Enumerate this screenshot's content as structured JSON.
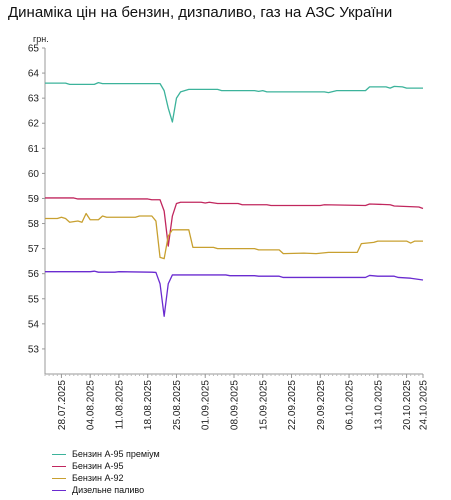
{
  "title": "Динаміка цін на бензин, дизпаливо, газ на АЗС України",
  "chart_data": {
    "type": "line",
    "title": "Динаміка цін на бензин, дизпаливо, газ на АЗС України",
    "ylabel": "грн.",
    "xlabel": "",
    "ylim": [
      52,
      65
    ],
    "yticks": [
      53,
      54,
      55,
      56,
      57,
      58,
      59,
      60,
      61,
      62,
      63,
      64,
      65
    ],
    "xlim": [
      "2025-07-24",
      "2025-10-24"
    ],
    "xtick_labels": [
      "28.07.2025",
      "04.08.2025",
      "11.08.2025",
      "18.08.2025",
      "25.08.2025",
      "01.09.2025",
      "08.09.2025",
      "15.09.2025",
      "22.09.2025",
      "29.09.2025",
      "06.10.2025",
      "13.10.2025",
      "20.10.2025",
      "24.10.2025"
    ],
    "grid": false,
    "legend_position": "bottom",
    "series": [
      {
        "name": "Бензин А-95 преміум",
        "color": "#3cb39b",
        "points": [
          [
            "2025-07-24",
            63.6
          ],
          [
            "2025-07-29",
            63.6
          ],
          [
            "2025-07-30",
            63.55
          ],
          [
            "2025-08-05",
            63.55
          ],
          [
            "2025-08-06",
            63.62
          ],
          [
            "2025-08-07",
            63.58
          ],
          [
            "2025-08-21",
            63.58
          ],
          [
            "2025-08-22",
            63.3
          ],
          [
            "2025-08-23",
            62.6
          ],
          [
            "2025-08-24",
            62.05
          ],
          [
            "2025-08-25",
            63.0
          ],
          [
            "2025-08-26",
            63.25
          ],
          [
            "2025-08-28",
            63.35
          ],
          [
            "2025-09-04",
            63.35
          ],
          [
            "2025-09-05",
            63.3
          ],
          [
            "2025-09-13",
            63.3
          ],
          [
            "2025-09-14",
            63.27
          ],
          [
            "2025-09-15",
            63.3
          ],
          [
            "2025-09-16",
            63.25
          ],
          [
            "2025-09-30",
            63.25
          ],
          [
            "2025-10-01",
            63.22
          ],
          [
            "2025-10-03",
            63.3
          ],
          [
            "2025-10-10",
            63.3
          ],
          [
            "2025-10-11",
            63.45
          ],
          [
            "2025-10-15",
            63.45
          ],
          [
            "2025-10-16",
            63.4
          ],
          [
            "2025-10-17",
            63.47
          ],
          [
            "2025-10-19",
            63.45
          ],
          [
            "2025-10-20",
            63.4
          ],
          [
            "2025-10-24",
            63.4
          ]
        ]
      },
      {
        "name": "Бензин А-95",
        "color": "#c1275e",
        "points": [
          [
            "2025-07-24",
            59.02
          ],
          [
            "2025-07-31",
            59.02
          ],
          [
            "2025-08-01",
            58.98
          ],
          [
            "2025-08-18",
            58.98
          ],
          [
            "2025-08-19",
            58.95
          ],
          [
            "2025-08-21",
            58.95
          ],
          [
            "2025-08-22",
            58.5
          ],
          [
            "2025-08-23",
            57.1
          ],
          [
            "2025-08-24",
            58.3
          ],
          [
            "2025-08-25",
            58.8
          ],
          [
            "2025-08-26",
            58.85
          ],
          [
            "2025-08-31",
            58.85
          ],
          [
            "2025-09-01",
            58.82
          ],
          [
            "2025-09-02",
            58.85
          ],
          [
            "2025-09-04",
            58.8
          ],
          [
            "2025-09-09",
            58.8
          ],
          [
            "2025-09-10",
            58.75
          ],
          [
            "2025-09-16",
            58.75
          ],
          [
            "2025-09-17",
            58.72
          ],
          [
            "2025-09-29",
            58.72
          ],
          [
            "2025-09-30",
            58.75
          ],
          [
            "2025-10-10",
            58.72
          ],
          [
            "2025-10-11",
            58.78
          ],
          [
            "2025-10-16",
            58.75
          ],
          [
            "2025-10-17",
            58.7
          ],
          [
            "2025-10-20",
            58.68
          ],
          [
            "2025-10-23",
            58.66
          ],
          [
            "2025-10-24",
            58.6
          ]
        ]
      },
      {
        "name": "Бензин А-92",
        "color": "#c8a030",
        "points": [
          [
            "2025-07-24",
            58.2
          ],
          [
            "2025-07-27",
            58.2
          ],
          [
            "2025-07-28",
            58.25
          ],
          [
            "2025-07-29",
            58.2
          ],
          [
            "2025-07-30",
            58.05
          ],
          [
            "2025-08-01",
            58.1
          ],
          [
            "2025-08-02",
            58.05
          ],
          [
            "2025-08-03",
            58.4
          ],
          [
            "2025-08-04",
            58.15
          ],
          [
            "2025-08-06",
            58.15
          ],
          [
            "2025-08-07",
            58.3
          ],
          [
            "2025-08-08",
            58.25
          ],
          [
            "2025-08-15",
            58.25
          ],
          [
            "2025-08-16",
            58.3
          ],
          [
            "2025-08-19",
            58.3
          ],
          [
            "2025-08-20",
            58.1
          ],
          [
            "2025-08-21",
            56.65
          ],
          [
            "2025-08-22",
            56.6
          ],
          [
            "2025-08-23",
            57.5
          ],
          [
            "2025-08-24",
            57.75
          ],
          [
            "2025-08-28",
            57.75
          ],
          [
            "2025-08-29",
            57.05
          ],
          [
            "2025-09-03",
            57.05
          ],
          [
            "2025-09-04",
            57.0
          ],
          [
            "2025-09-13",
            57.0
          ],
          [
            "2025-09-14",
            56.95
          ],
          [
            "2025-09-19",
            56.95
          ],
          [
            "2025-09-20",
            56.8
          ],
          [
            "2025-09-25",
            56.82
          ],
          [
            "2025-09-28",
            56.8
          ],
          [
            "2025-10-01",
            56.85
          ],
          [
            "2025-10-06",
            56.85
          ],
          [
            "2025-10-08",
            56.85
          ],
          [
            "2025-10-09",
            57.2
          ],
          [
            "2025-10-12",
            57.25
          ],
          [
            "2025-10-13",
            57.3
          ],
          [
            "2025-10-20",
            57.3
          ],
          [
            "2025-10-21",
            57.22
          ],
          [
            "2025-10-22",
            57.3
          ],
          [
            "2025-10-24",
            57.3
          ]
        ]
      },
      {
        "name": "Дизельне паливо",
        "color": "#6a2bd0",
        "points": [
          [
            "2025-07-24",
            56.08
          ],
          [
            "2025-08-04",
            56.08
          ],
          [
            "2025-08-05",
            56.1
          ],
          [
            "2025-08-06",
            56.06
          ],
          [
            "2025-08-10",
            56.06
          ],
          [
            "2025-08-11",
            56.08
          ],
          [
            "2025-08-19",
            56.06
          ],
          [
            "2025-08-20",
            56.05
          ],
          [
            "2025-08-21",
            55.6
          ],
          [
            "2025-08-22",
            54.3
          ],
          [
            "2025-08-23",
            55.6
          ],
          [
            "2025-08-24",
            55.95
          ],
          [
            "2025-08-29",
            55.95
          ],
          [
            "2025-09-06",
            55.95
          ],
          [
            "2025-09-07",
            55.92
          ],
          [
            "2025-09-13",
            55.92
          ],
          [
            "2025-09-14",
            55.9
          ],
          [
            "2025-09-19",
            55.9
          ],
          [
            "2025-09-20",
            55.85
          ],
          [
            "2025-10-10",
            55.85
          ],
          [
            "2025-10-11",
            55.93
          ],
          [
            "2025-10-13",
            55.9
          ],
          [
            "2025-10-17",
            55.9
          ],
          [
            "2025-10-18",
            55.85
          ],
          [
            "2025-10-21",
            55.82
          ],
          [
            "2025-10-24",
            55.75
          ]
        ]
      }
    ]
  }
}
